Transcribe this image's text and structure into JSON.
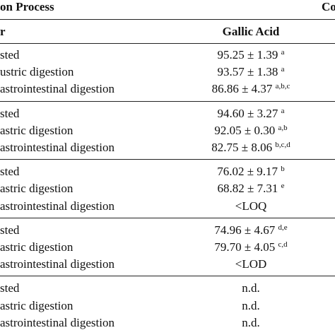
{
  "header": {
    "title": "on Process",
    "right": "Co"
  },
  "table": {
    "columns": [
      "r",
      "Gallic Acid"
    ],
    "groups": [
      [
        [
          "sted",
          "95.25 ± 1.39",
          "a"
        ],
        [
          "ustric digestion",
          "93.57 ± 1.38",
          "a"
        ],
        [
          "astrointestinal digestion",
          "86.86 ± 4.37",
          "a,b,c"
        ]
      ],
      [
        [
          "sted",
          "94.60 ± 3.27",
          "a"
        ],
        [
          "astric digestion",
          "92.05 ± 0.30",
          "a,b"
        ],
        [
          "astrointestinal digestion",
          "82.75 ± 8.06",
          "b,c,d"
        ]
      ],
      [
        [
          "sted",
          "76.02 ± 9.17",
          "b"
        ],
        [
          "astric digestion",
          "68.82 ± 7.31",
          "e"
        ],
        [
          "astrointestinal digestion",
          "<LOQ",
          null
        ]
      ],
      [
        [
          "sted",
          "74.96 ± 4.67",
          "d,e"
        ],
        [
          "astric digestion",
          "79.70 ± 4.05",
          "c,d"
        ],
        [
          "astrointestinal digestion",
          "<LOD",
          null
        ]
      ],
      [
        [
          "sted",
          "n.d.",
          null
        ],
        [
          "astric digestion",
          "n.d.",
          null
        ],
        [
          "astrointestinal digestion",
          "n.d.",
          null
        ]
      ]
    ]
  }
}
